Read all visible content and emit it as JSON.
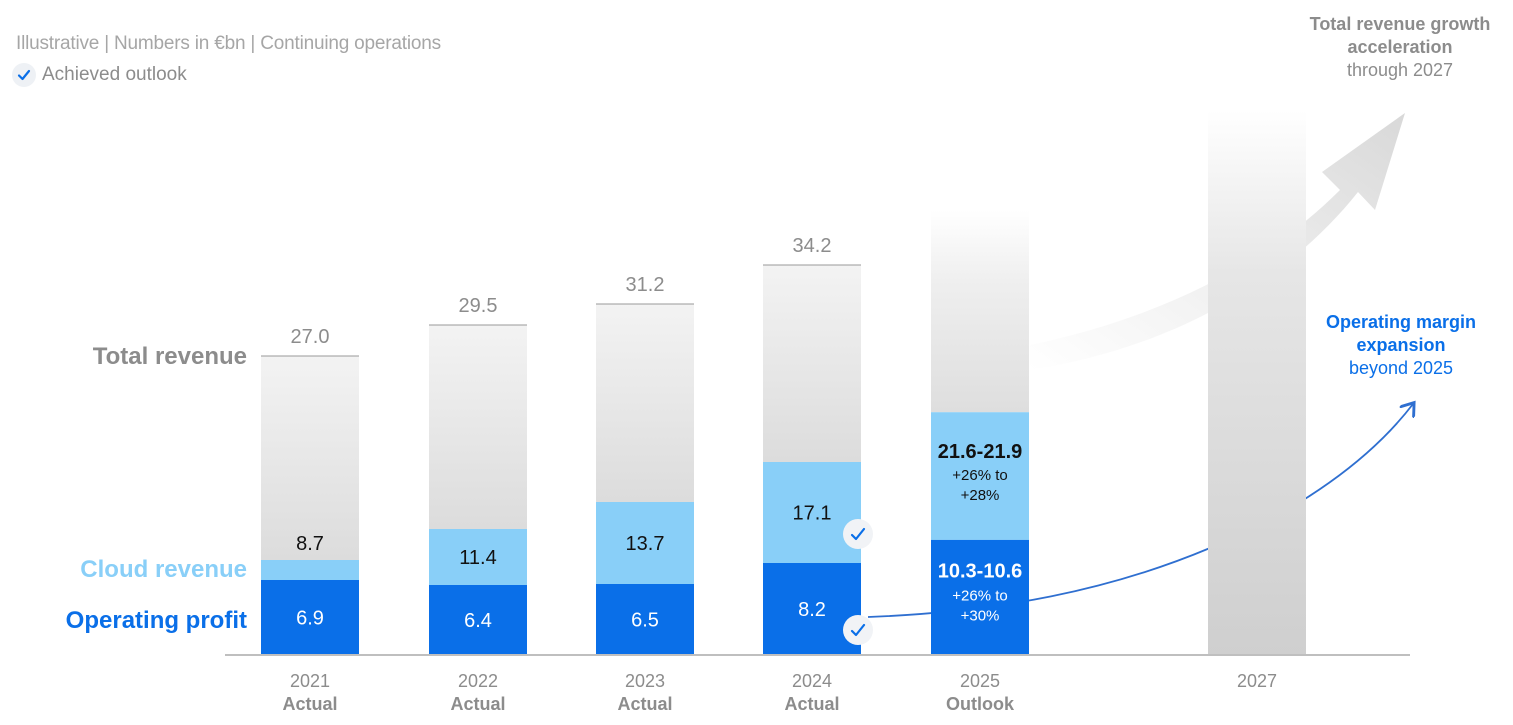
{
  "header": {
    "subtitle": "Illustrative | Numbers in €bn | Continuing operations",
    "legend_label": "Achieved outlook",
    "legend_icon": "check-icon"
  },
  "row_labels": {
    "total": "Total revenue",
    "cloud": "Cloud revenue",
    "op": "Operating profit"
  },
  "notes": {
    "growth_bold": "Total revenue growth acceleration",
    "growth_rest": "through 2027",
    "margin_bold": "Operating margin expansion",
    "margin_rest": "beyond 2025"
  },
  "colors": {
    "total": "#e8e8e8",
    "cloud": "#89cff8",
    "op": "#0a6fe8",
    "label_grey": "#8c8c8c",
    "axis": "#bfbfbf"
  },
  "chart_data": {
    "type": "bar",
    "stacked": true,
    "categories": [
      "2021",
      "2022",
      "2023",
      "2024",
      "2025",
      "2027"
    ],
    "category_sublabels": [
      "Actual",
      "Actual",
      "Actual",
      "Actual",
      "Outlook",
      ""
    ],
    "series": [
      {
        "name": "Operating profit",
        "values": [
          6.9,
          6.4,
          6.5,
          8.2,
          null,
          null
        ]
      },
      {
        "name": "Cloud revenue",
        "values": [
          8.7,
          11.4,
          13.7,
          17.1,
          null,
          null
        ]
      },
      {
        "name": "Total revenue",
        "values": [
          27.0,
          29.5,
          31.2,
          34.2,
          null,
          null
        ]
      }
    ],
    "outlook_2025": {
      "cloud_range": "21.6-21.9",
      "cloud_growth_line1": "+26% to",
      "cloud_growth_line2": "+28%",
      "op_range": "10.3-10.6",
      "op_growth_line1": "+26% to",
      "op_growth_line2": "+30%"
    },
    "value_labels": {
      "total": [
        "27.0",
        "29.5",
        "31.2",
        "34.2"
      ],
      "cloud": [
        "8.7",
        "11.4",
        "13.7",
        "17.1"
      ],
      "op": [
        "6.9",
        "6.4",
        "6.5",
        "8.2"
      ]
    },
    "achieved_markers": [
      "2024 cloud revenue",
      "2024 operating profit"
    ]
  }
}
